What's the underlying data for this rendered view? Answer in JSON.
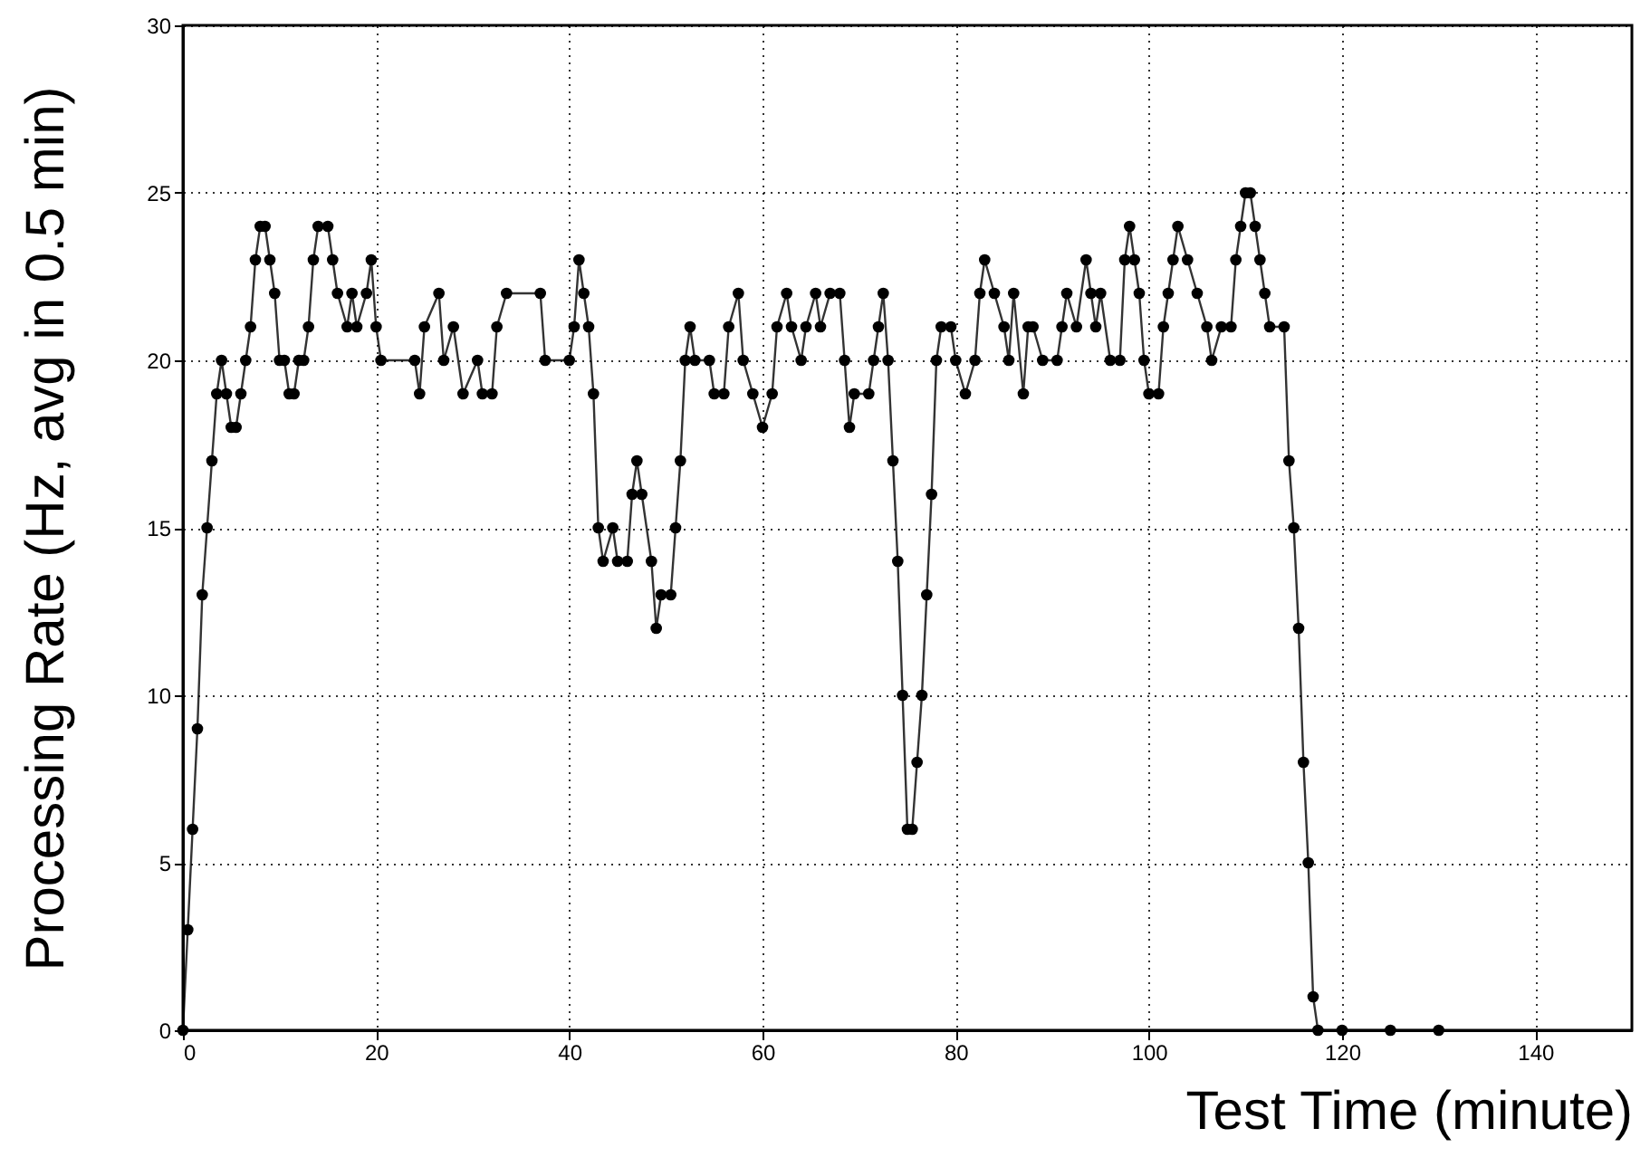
{
  "chart_data": {
    "type": "line",
    "xlabel": "Test Time (minute)",
    "ylabel": "Processing Rate (Hz, avg in 0.5 min)",
    "x": [
      0,
      0.5,
      1,
      1.5,
      2,
      2.5,
      3,
      3.5,
      4,
      4.5,
      5,
      5.5,
      6,
      6.5,
      7,
      7.5,
      8,
      8.5,
      9,
      9.5,
      10,
      10.5,
      11,
      11.5,
      12,
      12.5,
      13,
      13.5,
      14,
      15,
      15.5,
      16,
      17,
      17.5,
      18,
      19,
      19.5,
      20,
      20.5,
      24,
      24.5,
      25,
      26.5,
      27,
      28,
      29,
      30.5,
      31,
      32,
      32.5,
      33.5,
      37,
      37.5,
      40,
      40.5,
      41,
      41.5,
      42,
      42.5,
      43,
      43.5,
      44.5,
      45,
      46,
      46.5,
      47,
      47.5,
      48.5,
      49,
      49.5,
      50.5,
      51,
      51.5,
      52,
      52.5,
      53,
      54.5,
      55,
      56,
      56.5,
      57.5,
      58,
      59,
      60,
      61,
      61.5,
      62.5,
      63,
      64,
      64.5,
      65.5,
      66,
      67,
      68,
      68.5,
      69,
      69.5,
      71,
      71.5,
      72,
      72.5,
      73,
      73.5,
      74,
      74.5,
      75,
      75.5,
      76,
      76.5,
      77,
      77.5,
      78,
      78.5,
      79.5,
      80,
      81,
      82,
      82.5,
      83,
      84,
      85,
      85.5,
      86,
      87,
      87.5,
      88,
      89,
      90.5,
      91,
      91.5,
      92.5,
      93.5,
      94,
      94.5,
      95,
      96,
      97,
      97.5,
      98,
      98.5,
      99,
      99.5,
      100,
      101,
      101.5,
      102,
      102.5,
      103,
      104,
      105,
      106,
      106.5,
      107.5,
      108.5,
      109,
      109.5,
      110,
      110.5,
      111,
      111.5,
      112,
      112.5,
      114,
      114.5,
      115,
      115.5,
      116,
      116.5,
      117,
      117.5,
      120,
      125,
      130
    ],
    "series": [
      {
        "color": "#000000",
        "values": [
          0,
          3,
          6,
          9,
          13,
          15,
          17,
          19,
          20,
          19,
          18,
          18,
          19,
          20,
          21,
          23,
          24,
          24,
          23,
          22,
          20,
          20,
          19,
          19,
          20,
          20,
          21,
          23,
          24,
          24,
          23,
          22,
          21,
          22,
          21,
          22,
          23,
          21,
          20,
          20,
          19,
          21,
          22,
          20,
          21,
          19,
          20,
          19,
          19,
          21,
          22,
          22,
          20,
          20,
          21,
          23,
          22,
          21,
          19,
          15,
          14,
          15,
          14,
          14,
          16,
          17,
          16,
          14,
          12,
          13,
          13,
          15,
          17,
          20,
          21,
          20,
          20,
          19,
          19,
          21,
          22,
          20,
          19,
          18,
          19,
          21,
          22,
          21,
          20,
          21,
          22,
          21,
          22,
          22,
          20,
          18,
          19,
          19,
          20,
          21,
          22,
          20,
          17,
          14,
          10,
          6,
          6,
          8,
          10,
          13,
          16,
          20,
          21,
          21,
          20,
          19,
          20,
          22,
          23,
          22,
          21,
          20,
          22,
          19,
          21,
          21,
          20,
          20,
          21,
          22,
          21,
          23,
          22,
          21,
          22,
          20,
          20,
          23,
          24,
          23,
          22,
          20,
          19,
          19,
          21,
          22,
          23,
          24,
          23,
          22,
          21,
          20,
          21,
          21,
          23,
          24,
          25,
          25,
          24,
          23,
          22,
          21,
          21,
          17,
          15,
          12,
          8,
          5,
          1,
          0,
          0,
          0,
          0
        ]
      }
    ],
    "xlim": [
      0,
      150
    ],
    "xticks": [
      0,
      20,
      40,
      60,
      80,
      100,
      120,
      140
    ],
    "ylim": [
      0,
      30
    ],
    "yticks": [
      0,
      5,
      10,
      15,
      20,
      25,
      30
    ],
    "grid": true,
    "marker": "circle",
    "line_style": "solid",
    "legend": false
  }
}
